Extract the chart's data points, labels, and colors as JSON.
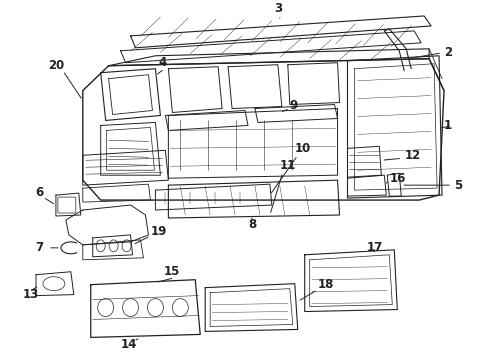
{
  "background_color": "#ffffff",
  "line_color": "#222222",
  "label_fontsize": 8.5,
  "label_fontweight": "bold",
  "figsize": [
    4.9,
    3.6
  ],
  "dpi": 100
}
